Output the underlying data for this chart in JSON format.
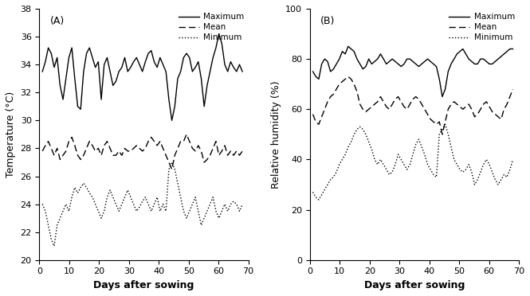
{
  "panel_A": {
    "label": "(A)",
    "ylabel": "Temperature (°C)",
    "xlabel": "Days after sowing",
    "ylim": [
      20,
      38
    ],
    "yticks": [
      20,
      22,
      24,
      26,
      28,
      30,
      32,
      34,
      36,
      38
    ],
    "xlim": [
      0,
      70
    ],
    "xticks": [
      0,
      10,
      20,
      30,
      40,
      50,
      60,
      70
    ],
    "max_temp": [
      33.5,
      34.2,
      35.2,
      34.8,
      33.8,
      34.5,
      32.5,
      31.5,
      33.0,
      34.5,
      35.2,
      33.0,
      31.0,
      30.8,
      33.5,
      34.8,
      35.2,
      34.5,
      33.8,
      34.2,
      31.5,
      34.0,
      34.5,
      33.5,
      32.5,
      32.8,
      33.5,
      33.8,
      34.5,
      33.5,
      33.8,
      34.2,
      34.5,
      34.0,
      33.5,
      34.2,
      34.8,
      35.0,
      34.2,
      33.8,
      34.5,
      34.0,
      33.5,
      31.5,
      30.0,
      31.0,
      33.0,
      33.5,
      34.5,
      34.8,
      34.5,
      33.5,
      33.8,
      34.2,
      33.0,
      31.0,
      32.5,
      33.5,
      34.5,
      35.2,
      36.2,
      35.5,
      34.0,
      33.5,
      34.2,
      33.8,
      33.5,
      34.0,
      33.5
    ],
    "mean_temp": [
      27.8,
      28.2,
      28.5,
      28.0,
      27.5,
      28.0,
      27.2,
      27.5,
      27.8,
      28.5,
      28.8,
      28.2,
      27.5,
      27.2,
      27.5,
      28.0,
      28.5,
      28.2,
      27.8,
      28.0,
      27.5,
      28.2,
      28.5,
      28.0,
      27.5,
      27.5,
      27.8,
      27.5,
      28.0,
      27.8,
      27.8,
      28.0,
      28.2,
      28.0,
      27.8,
      28.0,
      28.5,
      28.8,
      28.5,
      28.2,
      28.5,
      28.0,
      27.5,
      27.0,
      26.5,
      27.5,
      28.0,
      28.5,
      28.5,
      29.0,
      28.5,
      28.0,
      27.8,
      28.2,
      27.8,
      27.0,
      27.2,
      27.5,
      28.0,
      28.5,
      27.5,
      27.8,
      28.2,
      27.5,
      27.8,
      27.5,
      27.8,
      27.5,
      27.8
    ],
    "min_temp": [
      24.0,
      23.5,
      22.5,
      21.5,
      21.0,
      22.5,
      23.0,
      23.5,
      24.0,
      23.5,
      24.5,
      25.2,
      24.8,
      25.2,
      25.5,
      25.2,
      24.8,
      24.5,
      24.0,
      23.5,
      23.0,
      23.5,
      24.5,
      25.0,
      24.5,
      24.0,
      23.5,
      24.0,
      24.5,
      25.0,
      24.5,
      24.0,
      23.5,
      23.8,
      24.2,
      24.5,
      24.0,
      23.5,
      24.0,
      24.5,
      23.5,
      24.0,
      23.5,
      26.5,
      27.0,
      26.5,
      25.5,
      24.5,
      23.5,
      23.0,
      23.5,
      24.0,
      24.5,
      23.5,
      22.5,
      23.0,
      23.5,
      24.0,
      24.5,
      23.5,
      23.0,
      23.5,
      24.0,
      23.5,
      24.0,
      24.2,
      24.0,
      23.5,
      24.0
    ]
  },
  "panel_B": {
    "label": "(B)",
    "ylabel": "Relative humidity (%)",
    "xlabel": "Days after sowing",
    "ylim": [
      0,
      100
    ],
    "yticks": [
      0,
      20,
      40,
      60,
      80,
      100
    ],
    "xlim": [
      0,
      70
    ],
    "xticks": [
      0,
      10,
      20,
      30,
      40,
      50,
      60,
      70
    ],
    "max_rh": [
      75,
      73,
      72,
      78,
      80,
      79,
      75,
      76,
      78,
      80,
      83,
      82,
      85,
      84,
      83,
      80,
      78,
      76,
      77,
      80,
      78,
      79,
      80,
      82,
      80,
      78,
      79,
      80,
      79,
      78,
      77,
      78,
      80,
      80,
      79,
      78,
      77,
      78,
      79,
      80,
      79,
      78,
      77,
      72,
      65,
      68,
      75,
      78,
      80,
      82,
      83,
      84,
      82,
      80,
      79,
      78,
      78,
      80,
      80,
      79,
      78,
      78,
      79,
      80,
      81,
      82,
      83,
      84,
      84
    ],
    "mean_rh": [
      58,
      55,
      54,
      57,
      60,
      63,
      65,
      66,
      68,
      70,
      71,
      72,
      73,
      72,
      70,
      67,
      62,
      60,
      59,
      60,
      61,
      62,
      63,
      65,
      63,
      61,
      60,
      62,
      64,
      65,
      63,
      61,
      60,
      62,
      64,
      65,
      64,
      62,
      60,
      58,
      56,
      55,
      54,
      55,
      50,
      55,
      60,
      62,
      63,
      62,
      61,
      60,
      61,
      62,
      60,
      57,
      58,
      60,
      62,
      63,
      61,
      59,
      58,
      57,
      56,
      60,
      62,
      65,
      68
    ],
    "min_rh": [
      27,
      25,
      24,
      26,
      28,
      30,
      32,
      33,
      35,
      38,
      40,
      42,
      45,
      47,
      50,
      52,
      53,
      52,
      50,
      47,
      44,
      40,
      38,
      40,
      38,
      36,
      34,
      35,
      38,
      42,
      40,
      38,
      36,
      38,
      42,
      46,
      48,
      45,
      42,
      38,
      36,
      34,
      33,
      50,
      52,
      54,
      50,
      45,
      40,
      38,
      36,
      35,
      36,
      38,
      35,
      30,
      32,
      35,
      38,
      40,
      38,
      35,
      32,
      30,
      32,
      34,
      33,
      36,
      40
    ]
  },
  "line_color": "#000000",
  "background_color": "#ffffff",
  "legend_entries": [
    "Maximum",
    "Mean",
    "Minimum"
  ]
}
